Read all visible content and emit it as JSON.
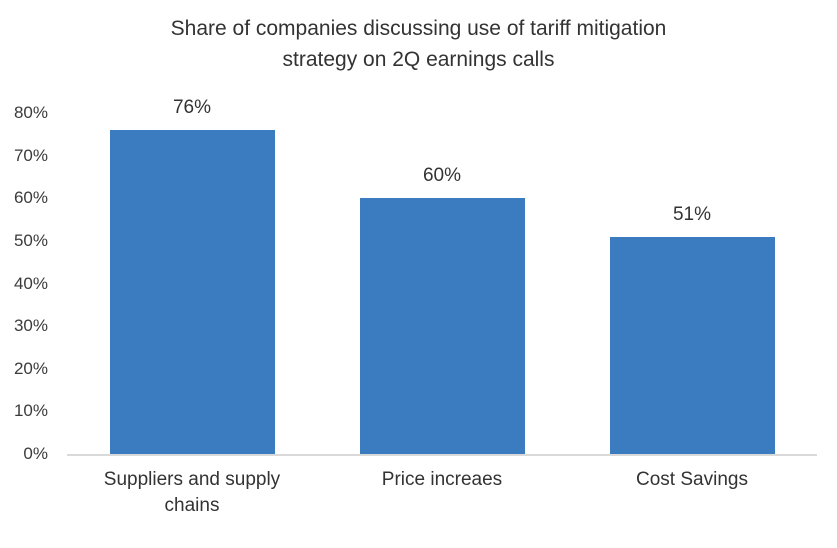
{
  "chart_data": {
    "type": "bar",
    "title": "Share of companies discussing use of tariff mitigation strategy on 2Q earnings calls",
    "title_lines": [
      "Share of companies discussing use of tariff mitigation",
      "strategy on 2Q earnings calls"
    ],
    "categories": [
      "Suppliers and supply chains",
      "Price increaes",
      "Cost Savings"
    ],
    "values": [
      76,
      60,
      51
    ],
    "data_labels": [
      "76%",
      "60%",
      "51%"
    ],
    "xlabel": "",
    "ylabel": "",
    "ylim": [
      0,
      80
    ],
    "yticks": [
      "0%",
      "10%",
      "20%",
      "30%",
      "40%",
      "50%",
      "60%",
      "70%",
      "80%"
    ],
    "grid": false,
    "legend": false,
    "colors": {
      "bar": "#3A7CBF",
      "axis_line": "#D9D9D9",
      "text": "#333333"
    }
  }
}
